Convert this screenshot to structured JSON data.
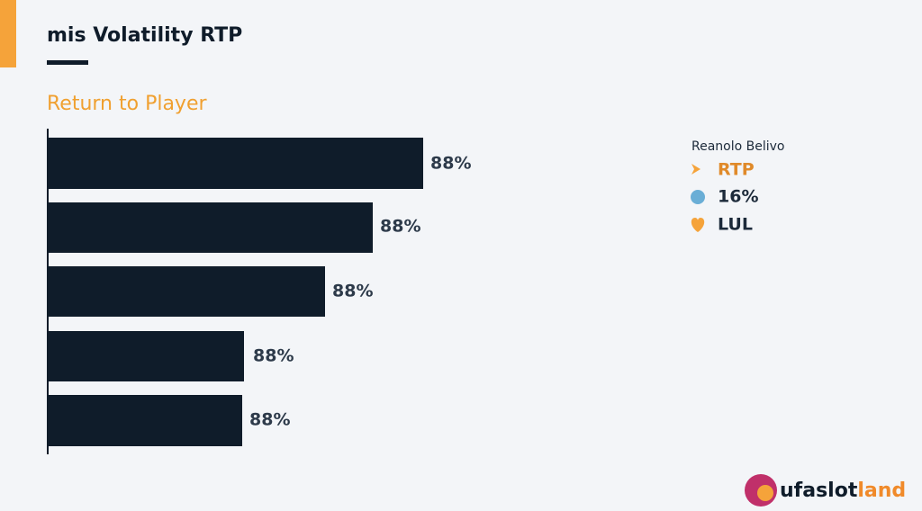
{
  "header": {
    "title": "mis Volatility RTP",
    "subtitle": "Return to Player"
  },
  "bars": [
    {
      "label": "88%"
    },
    {
      "label": "88%"
    },
    {
      "label": "88%"
    },
    {
      "label": "88%"
    },
    {
      "label": "88%"
    }
  ],
  "legend": {
    "title": "Reanolo Belivo",
    "items": [
      "RTP",
      "16%",
      "LUL"
    ]
  },
  "logo": {
    "text": "ufaslot",
    "accent": "land"
  }
}
